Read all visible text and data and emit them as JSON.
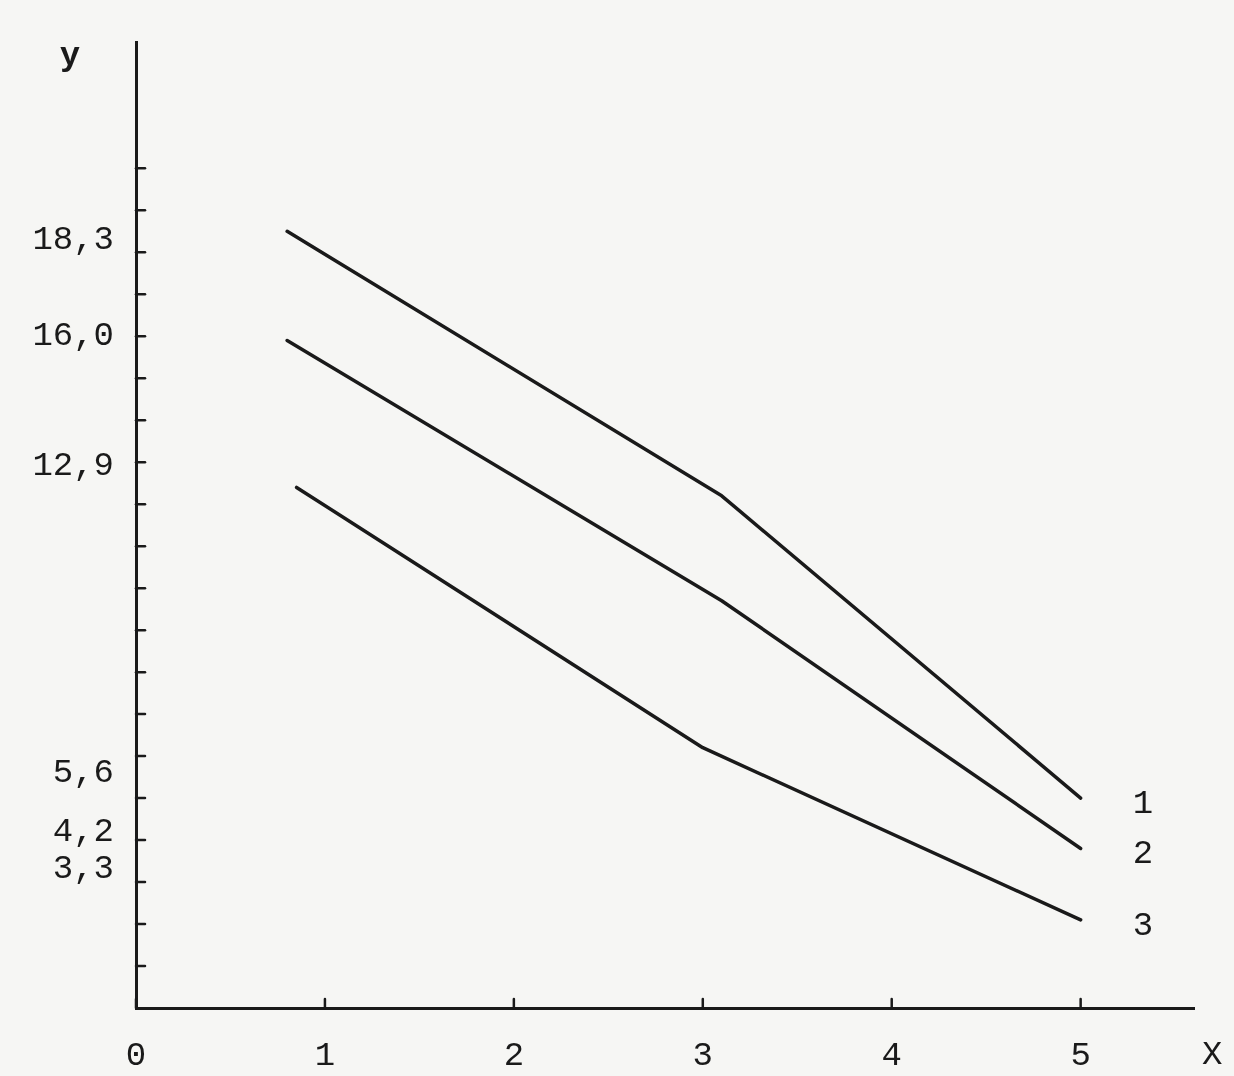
{
  "chart_data": {
    "type": "line",
    "xlabel": "X",
    "ylabel": "y",
    "xlim": [
      0,
      5.6
    ],
    "ylim": [
      0,
      23
    ],
    "xticks": [
      0,
      1,
      2,
      3,
      4,
      5
    ],
    "yticks": [
      {
        "value": 1,
        "label": null
      },
      {
        "value": 2,
        "label": null
      },
      {
        "value": 3,
        "label": null
      },
      {
        "value": 3.3,
        "label": "3,3"
      },
      {
        "value": 4,
        "label": null
      },
      {
        "value": 4.2,
        "label": "4,2"
      },
      {
        "value": 5,
        "label": null
      },
      {
        "value": 5.6,
        "label": "5,6"
      },
      {
        "value": 6,
        "label": null
      },
      {
        "value": 7,
        "label": null
      },
      {
        "value": 8,
        "label": null
      },
      {
        "value": 9,
        "label": null
      },
      {
        "value": 10,
        "label": null
      },
      {
        "value": 11,
        "label": null
      },
      {
        "value": 12,
        "label": null
      },
      {
        "value": 12.9,
        "label": "12,9"
      },
      {
        "value": 13,
        "label": null
      },
      {
        "value": 14,
        "label": null
      },
      {
        "value": 15,
        "label": null
      },
      {
        "value": 16,
        "label": null
      },
      {
        "value": 16,
        "label": "16,0"
      },
      {
        "value": 17,
        "label": null
      },
      {
        "value": 18,
        "label": null
      },
      {
        "value": 18.3,
        "label": "18,3"
      },
      {
        "value": 19,
        "label": null
      },
      {
        "value": 20,
        "label": null
      }
    ],
    "legend": false,
    "marker": "none",
    "line_style": "solid",
    "series": [
      {
        "name": "1",
        "color": "#1a1a1a",
        "x": [
          0.8,
          3.1,
          5.0
        ],
        "values": [
          18.5,
          12.2,
          5.0
        ]
      },
      {
        "name": "2",
        "color": "#1a1a1a",
        "x": [
          0.8,
          3.1,
          5.0
        ],
        "values": [
          15.9,
          9.7,
          3.8
        ]
      },
      {
        "name": "3",
        "color": "#1a1a1a",
        "x": [
          0.85,
          3.0,
          5.0
        ],
        "values": [
          12.4,
          6.2,
          2.1
        ]
      }
    ]
  }
}
